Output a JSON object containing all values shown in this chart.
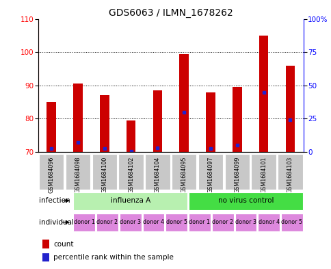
{
  "title": "GDS6063 / ILMN_1678262",
  "samples": [
    "GSM1684096",
    "GSM1684098",
    "GSM1684100",
    "GSM1684102",
    "GSM1684104",
    "GSM1684095",
    "GSM1684097",
    "GSM1684099",
    "GSM1684101",
    "GSM1684103"
  ],
  "count_values": [
    85.0,
    90.5,
    87.0,
    79.5,
    88.5,
    99.5,
    88.0,
    89.5,
    105.0,
    96.0
  ],
  "percentile_values": [
    2.5,
    7.0,
    2.5,
    0.5,
    3.0,
    30.0,
    2.5,
    5.0,
    45.0,
    24.0
  ],
  "bar_bottom": 70,
  "ylim_left": [
    70,
    110
  ],
  "ylim_right": [
    0,
    100
  ],
  "yticks_left": [
    70,
    80,
    90,
    100,
    110
  ],
  "yticks_right": [
    0,
    25,
    50,
    75,
    100
  ],
  "ytick_labels_right": [
    "0",
    "25",
    "50",
    "75",
    "100%"
  ],
  "bar_color": "#cc0000",
  "blue_color": "#2222cc",
  "infection_groups": [
    {
      "label": "influenza A",
      "start": 0,
      "end": 5,
      "color": "#b8f0b0"
    },
    {
      "label": "no virus control",
      "start": 5,
      "end": 10,
      "color": "#44dd44"
    }
  ],
  "individual_labels": [
    "donor 1",
    "donor 2",
    "donor 3",
    "donor 4",
    "donor 5",
    "donor 1",
    "donor 2",
    "donor 3",
    "donor 4",
    "donor 5"
  ],
  "individual_color": "#dd88dd",
  "sample_bg_color": "#c8c8c8",
  "infection_label": "infection",
  "individual_label": "individual",
  "legend_count_label": "count",
  "legend_pct_label": "percentile rank within the sample",
  "bar_width": 0.35,
  "title_fontsize": 10,
  "tick_fontsize": 7.5,
  "small_fontsize": 5.8,
  "row_fontsize": 7.5,
  "legend_fontsize": 7.5
}
